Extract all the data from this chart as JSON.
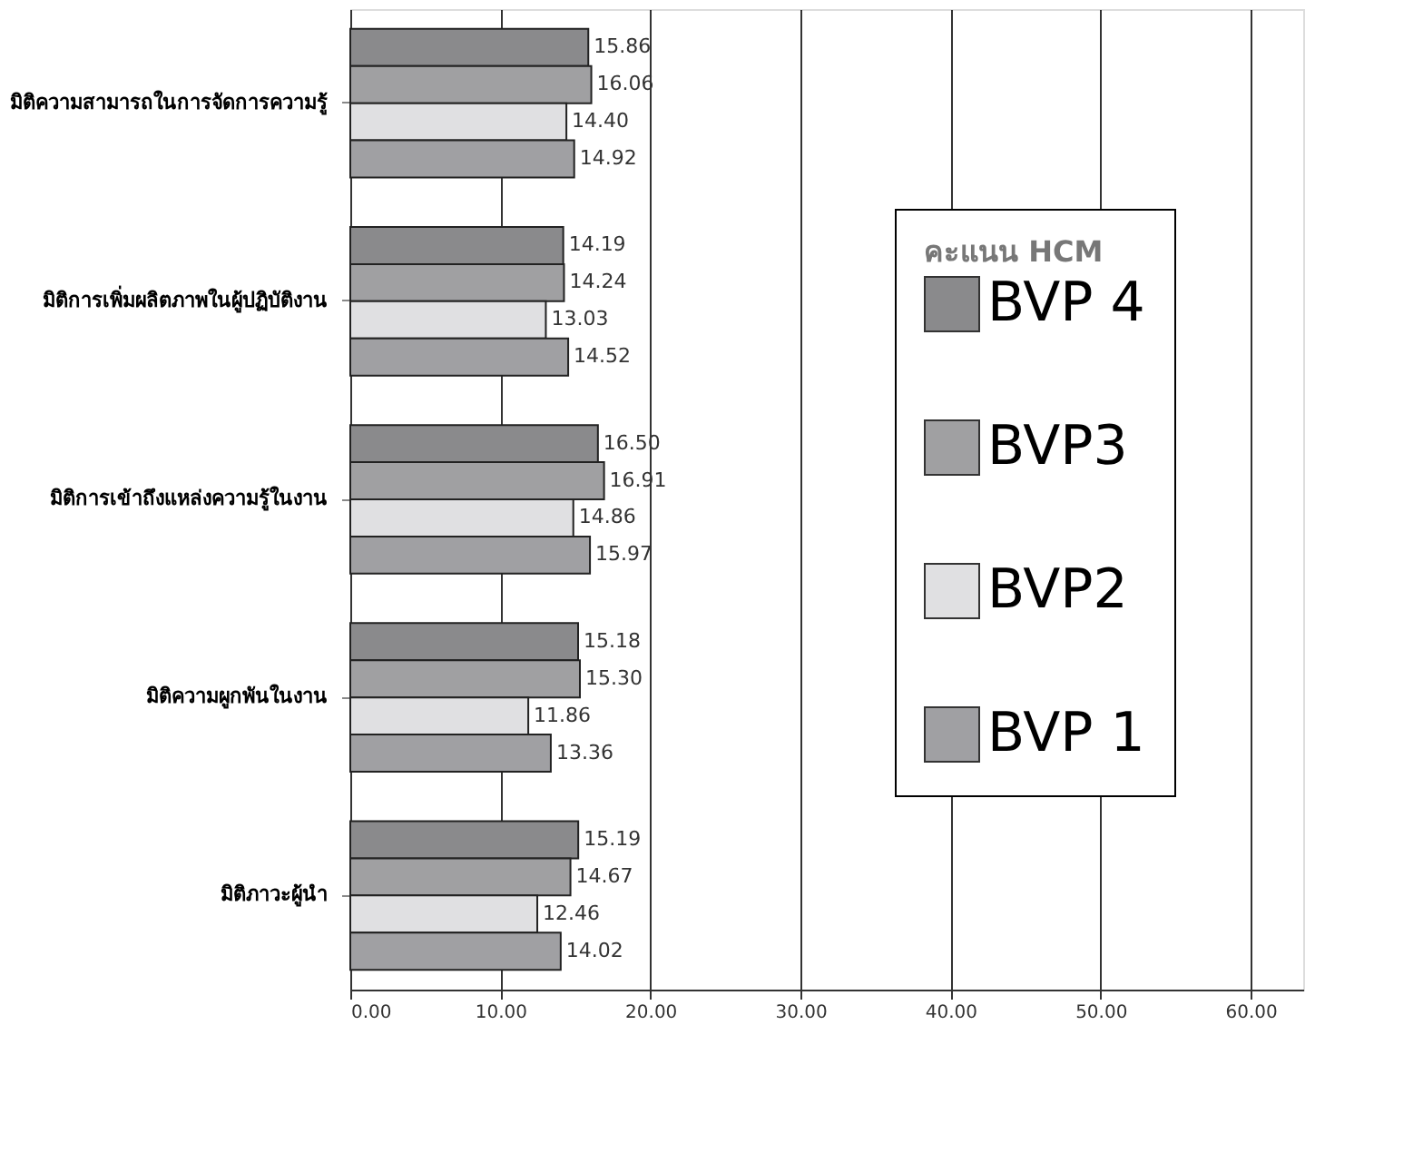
{
  "chart_data": {
    "type": "bar",
    "orientation": "horizontal",
    "categories": [
      "มิติความสามารถในการจัดการความรู้",
      "มิติการเพิ่มผลิตภาพในผู้ปฏิบัติงาน",
      "มิติการเข้าถึงแหล่งความรู้ในงาน",
      "มิติความผูกพันในงาน",
      "มิติภาวะผู้นำ"
    ],
    "series": [
      {
        "name": "BVP 4",
        "color": "#8a8a8c",
        "values": [
          15.86,
          14.19,
          16.5,
          15.18,
          15.19
        ],
        "value_labels": [
          "15.86",
          "14.19",
          "16.50",
          "15.18",
          "15.19"
        ]
      },
      {
        "name": "BVP3",
        "color": "#a0a0a2",
        "values": [
          16.06,
          14.24,
          16.91,
          15.3,
          14.67
        ],
        "value_labels": [
          "16.06",
          "14.24",
          "16.91",
          "15.30",
          "14.67"
        ]
      },
      {
        "name": "BVP2",
        "color": "#e0e0e2",
        "values": [
          14.4,
          13.03,
          14.86,
          11.86,
          12.46
        ],
        "value_labels": [
          "14.40",
          "13.03",
          "14.86",
          "11.86",
          "12.46"
        ]
      },
      {
        "name": "BVP 1",
        "color": "#a0a0a3",
        "values": [
          14.92,
          14.52,
          15.97,
          13.36,
          14.02
        ],
        "value_labels": [
          "14.92",
          "14.52",
          "15.97",
          "13.36",
          "14.02"
        ]
      }
    ],
    "legend_title": "คะแนน HCM",
    "xlim": [
      0,
      63.5
    ],
    "xticks": [
      {
        "value": 0,
        "label": "0.00"
      },
      {
        "value": 10,
        "label": "10.00"
      },
      {
        "value": 20,
        "label": "20.00"
      },
      {
        "value": 30,
        "label": "30.00"
      },
      {
        "value": 40,
        "label": "40.00"
      },
      {
        "value": 50,
        "label": "50.00"
      },
      {
        "value": 60,
        "label": "60.00"
      }
    ],
    "grid": "x",
    "legend": "right"
  }
}
